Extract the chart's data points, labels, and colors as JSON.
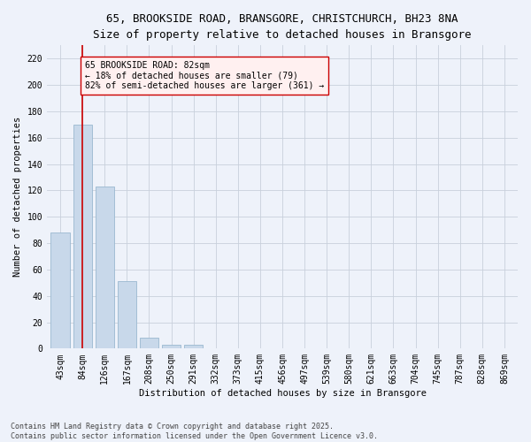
{
  "title_line1": "65, BROOKSIDE ROAD, BRANSGORE, CHRISTCHURCH, BH23 8NA",
  "title_line2": "Size of property relative to detached houses in Bransgore",
  "xlabel": "Distribution of detached houses by size in Bransgore",
  "ylabel": "Number of detached properties",
  "bar_labels": [
    "43sqm",
    "84sqm",
    "126sqm",
    "167sqm",
    "208sqm",
    "250sqm",
    "291sqm",
    "332sqm",
    "373sqm",
    "415sqm",
    "456sqm",
    "497sqm",
    "539sqm",
    "580sqm",
    "621sqm",
    "663sqm",
    "704sqm",
    "745sqm",
    "787sqm",
    "828sqm",
    "869sqm"
  ],
  "bar_values": [
    88,
    170,
    123,
    51,
    8,
    3,
    3,
    0,
    0,
    0,
    0,
    0,
    0,
    0,
    0,
    0,
    0,
    0,
    0,
    0,
    0
  ],
  "bar_color": "#c8d8ea",
  "bar_edgecolor": "#9ab8d0",
  "vline_x": 1.0,
  "vline_color": "#cc0000",
  "annotation_text": "65 BROOKSIDE ROAD: 82sqm\n← 18% of detached houses are smaller (79)\n82% of semi-detached houses are larger (361) →",
  "annotation_box_facecolor": "#fff0f0",
  "annotation_box_edgecolor": "#cc0000",
  "ylim": [
    0,
    230
  ],
  "yticks": [
    0,
    20,
    40,
    60,
    80,
    100,
    120,
    140,
    160,
    180,
    200,
    220
  ],
  "grid_color": "#c8d0dc",
  "bg_color": "#eef2fa",
  "footer_text": "Contains HM Land Registry data © Crown copyright and database right 2025.\nContains public sector information licensed under the Open Government Licence v3.0.",
  "title_fontsize": 9,
  "subtitle_fontsize": 8.5,
  "axis_label_fontsize": 7.5,
  "tick_fontsize": 7,
  "annotation_fontsize": 7,
  "footer_fontsize": 6
}
